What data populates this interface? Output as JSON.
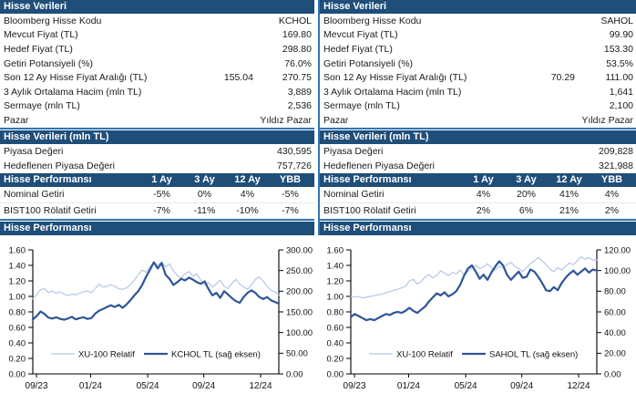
{
  "colors": {
    "header_navy": "#1F4E79",
    "divider_blue": "#2E75B6",
    "series_light": "#B4C7E7",
    "series_dark": "#2F5597"
  },
  "panels": [
    {
      "stock_header": "Hisse Verileri",
      "info_rows": [
        {
          "label": "Bloomberg Hisse Kodu",
          "value": "KCHOL"
        },
        {
          "label": "Mevcut Fiyat (TL)",
          "value": "169.80"
        },
        {
          "label": "Hedef Fiyat (TL)",
          "value": "298.80"
        },
        {
          "label": "Getiri Potansiyeli (%)",
          "value": "76.0%"
        },
        {
          "label": "Son 12 Ay Hisse Fiyat Aralığı (TL)",
          "mid": "155.04",
          "value": "270.75"
        },
        {
          "label": "3 Aylık Ortalama Hacim (mln TL)",
          "value": "3,889"
        },
        {
          "label": "Sermaye (mln TL)",
          "value": "2,536"
        },
        {
          "label": "Pazar",
          "value": "Yıldız Pazar"
        }
      ],
      "market_header": "Hisse Verileri (mln TL)",
      "market_rows": [
        {
          "label": "Piyasa Değeri",
          "value": "430,595"
        },
        {
          "label": "Hedeflenen Piyasa Değeri",
          "value": "757,726"
        }
      ],
      "perf_header": "Hisse Performansı",
      "perf_columns": [
        "1 Ay",
        "3 Ay",
        "12 Ay",
        "YBB"
      ],
      "perf_rows": [
        {
          "label": "Nominal Getiri",
          "values": [
            "-5%",
            "0%",
            "4%",
            "-5%"
          ]
        },
        {
          "label": "BIST100 Rölatif Getiri",
          "values": [
            "-7%",
            "-11%",
            "-10%",
            "-7%"
          ]
        }
      ],
      "chart_header": "Hisse Performansı"
    },
    {
      "stock_header": "Hisse Verileri",
      "info_rows": [
        {
          "label": "Bloomberg Hisse Kodu",
          "value": "SAHOL"
        },
        {
          "label": "Mevcut Fiyat (TL)",
          "value": "99.90"
        },
        {
          "label": "Hedef Fiyat (TL)",
          "value": "153.30"
        },
        {
          "label": "Getiri Potansiyeli (%)",
          "value": "53.5%"
        },
        {
          "label": "Son 12 Ay Hisse Fiyat Aralığı (TL)",
          "mid": "70.29",
          "value": "111.00"
        },
        {
          "label": "3 Aylık Ortalama Hacim (mln TL)",
          "value": "1,641"
        },
        {
          "label": "Sermaye (mln TL)",
          "value": "2,100"
        },
        {
          "label": "Pazar",
          "value": "Yıldız Pazar"
        }
      ],
      "market_header": "Hisse Verileri (mln TL)",
      "market_rows": [
        {
          "label": "Piyasa Değeri",
          "value": "209,828"
        },
        {
          "label": "Hedeflenen Piyasa Değeri",
          "value": "321,988"
        }
      ],
      "perf_header": "Hisse Performansı",
      "perf_columns": [
        "1 Ay",
        "3 Ay",
        "12 Ay",
        "YBB"
      ],
      "perf_rows": [
        {
          "label": "Nominal Getiri",
          "values": [
            "4%",
            "20%",
            "41%",
            "4%"
          ]
        },
        {
          "label": "BIST100 Rölatif Getiri",
          "values": [
            "2%",
            "6%",
            "21%",
            "2%"
          ]
        }
      ],
      "chart_header": "Hisse Performansı"
    }
  ],
  "chart_data": [
    {
      "type": "line",
      "title": "Hisse Performansı (KCHOL)",
      "grid": false,
      "legend_position": "bottom-inside",
      "x_ticks": [
        "09/23",
        "01/24",
        "05/24",
        "09/24",
        "12/24"
      ],
      "x_tick_pos": [
        0.015,
        0.235,
        0.467,
        0.695,
        0.926
      ],
      "left_axis": {
        "min": 0,
        "max": 1.6,
        "step": 0.2
      },
      "right_axis": {
        "min": 0,
        "max": 300,
        "step": 50
      },
      "series": [
        {
          "name": "XU-100 Relatif",
          "axis": "left",
          "color": "#B4C7E7",
          "width": 1.2,
          "values": [
            0.97,
            1.02,
            1.09,
            1.1,
            1.05,
            1.07,
            1.04,
            1.06,
            1.03,
            1.01,
            1.03,
            1.02,
            1.04,
            1.06,
            1.07,
            1.05,
            1.1,
            1.16,
            1.12,
            1.13,
            1.15,
            1.13,
            1.1,
            1.09,
            1.11,
            1.15,
            1.21,
            1.28,
            1.34,
            1.31,
            1.39,
            1.43,
            1.4,
            1.45,
            1.38,
            1.42,
            1.33,
            1.27,
            1.24,
            1.29,
            1.32,
            1.26,
            1.29,
            1.21,
            1.15,
            1.18,
            1.12,
            1.16,
            1.21,
            1.13,
            1.1,
            1.17,
            1.22,
            1.16,
            1.12,
            1.09,
            1.15,
            1.22,
            1.25,
            1.2,
            1.13,
            1.08,
            1.06,
            1.02
          ]
        },
        {
          "name": "KCHOL TL (sağ eksen)",
          "axis": "right",
          "color": "#2F5597",
          "width": 2.2,
          "values": [
            132,
            140,
            151,
            145,
            136,
            134,
            137,
            133,
            131,
            134,
            138,
            132,
            135,
            137,
            133,
            135,
            146,
            153,
            157,
            162,
            166,
            162,
            167,
            160,
            168,
            178,
            190,
            200,
            215,
            235,
            252,
            270,
            255,
            268,
            240,
            230,
            215,
            222,
            230,
            226,
            233,
            228,
            222,
            218,
            224,
            205,
            190,
            196,
            184,
            200,
            192,
            183,
            176,
            172,
            186,
            196,
            202,
            196,
            186,
            181,
            186,
            178,
            174,
            170
          ]
        }
      ]
    },
    {
      "type": "line",
      "title": "Hisse Performansı (SAHOL)",
      "grid": false,
      "legend_position": "bottom-inside",
      "x_ticks": [
        "09/23",
        "01/24",
        "05/24",
        "09/24",
        "12/24"
      ],
      "x_tick_pos": [
        0.015,
        0.235,
        0.467,
        0.695,
        0.926
      ],
      "left_axis": {
        "min": 0,
        "max": 1.6,
        "step": 0.2
      },
      "right_axis": {
        "min": 0,
        "max": 120,
        "step": 20
      },
      "series": [
        {
          "name": "XU-100 Relatif",
          "axis": "left",
          "color": "#B4C7E7",
          "width": 1.2,
          "values": [
            1.0,
            0.99,
            1.0,
            0.98,
            0.99,
            1.0,
            1.01,
            1.02,
            1.03,
            1.05,
            1.06,
            1.08,
            1.09,
            1.11,
            1.13,
            1.2,
            1.22,
            1.16,
            1.19,
            1.25,
            1.28,
            1.24,
            1.27,
            1.33,
            1.3,
            1.27,
            1.31,
            1.29,
            1.34,
            1.28,
            1.32,
            1.37,
            1.4,
            1.36,
            1.38,
            1.42,
            1.37,
            1.34,
            1.39,
            1.37,
            1.41,
            1.44,
            1.39,
            1.36,
            1.32,
            1.37,
            1.42,
            1.46,
            1.5,
            1.46,
            1.41,
            1.35,
            1.32,
            1.37,
            1.34,
            1.39,
            1.43,
            1.41,
            1.46,
            1.51,
            1.48,
            1.5,
            1.47,
            1.47
          ]
        },
        {
          "name": "SAHOL TL (sağ eksen)",
          "axis": "right",
          "color": "#2F5597",
          "width": 2.2,
          "values": [
            55,
            58,
            56,
            54,
            52,
            53,
            52,
            54,
            56,
            58,
            57,
            59,
            60,
            59,
            61,
            64,
            61,
            59,
            62,
            65,
            70,
            74,
            78,
            76,
            79,
            75,
            77,
            80,
            86,
            95,
            102,
            105,
            99,
            92,
            96,
            91,
            98,
            104,
            109,
            105,
            96,
            91,
            95,
            99,
            93,
            94,
            101,
            99,
            94,
            88,
            81,
            80,
            84,
            81,
            88,
            93,
            97,
            100,
            96,
            99,
            102,
            98,
            101,
            100
          ]
        }
      ]
    }
  ]
}
